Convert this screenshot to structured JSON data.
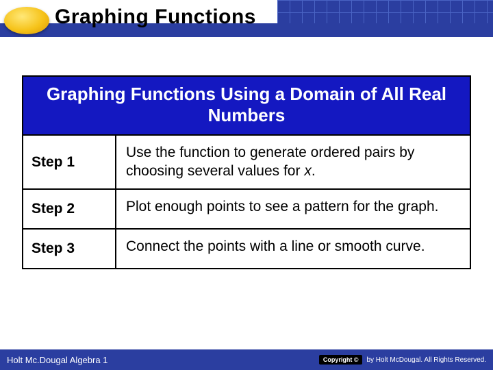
{
  "header": {
    "title": "Graphing Functions",
    "stripe_color": "#2b3ea0",
    "grid_bg": "#2b3ea0",
    "grid_line": "#4a64c4",
    "oval_gradient": [
      "#ffe878",
      "#f6c31a",
      "#d99700"
    ]
  },
  "card": {
    "title": "Graphing Functions Using a Domain of All Real Numbers",
    "title_bg": "#1418c1",
    "title_color": "#ffffff",
    "border_color": "#000000",
    "rows": [
      {
        "step": "Step 1",
        "desc_pre": "Use the function to generate ordered pairs by choosing several values for ",
        "desc_ital": "x",
        "desc_post": "."
      },
      {
        "step": "Step 2",
        "desc_pre": "Plot enough points to see a pattern for the graph.",
        "desc_ital": "",
        "desc_post": ""
      },
      {
        "step": "Step 3",
        "desc_pre": "Connect the points with a line or smooth curve.",
        "desc_ital": "",
        "desc_post": ""
      }
    ]
  },
  "footer": {
    "left": "Holt Mc.Dougal Algebra 1",
    "right_badge": "Copyright ©",
    "right_text": "by Holt McDougal. All Rights Reserved.",
    "bg": "#2b3ea0"
  }
}
